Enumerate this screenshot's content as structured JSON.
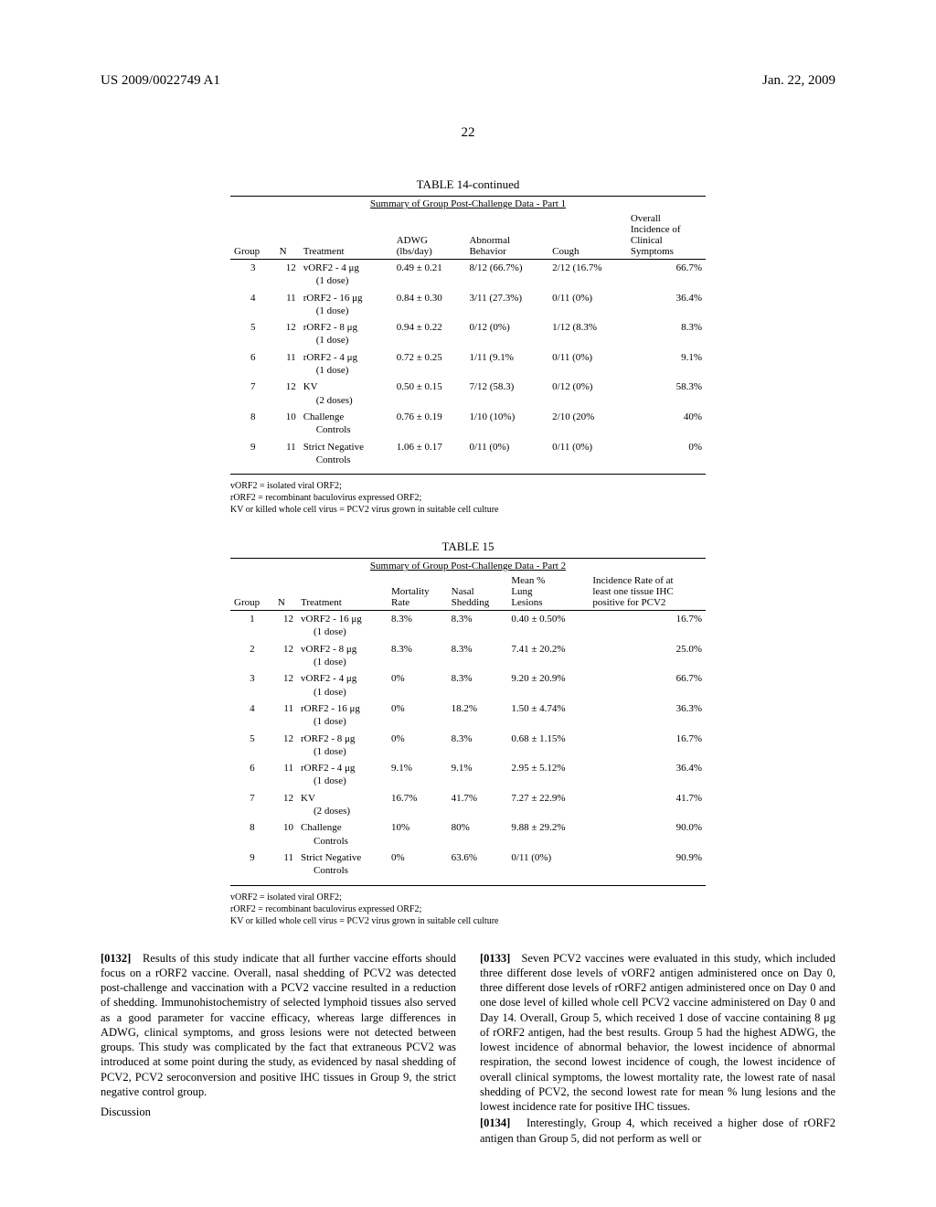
{
  "header": {
    "doc_number": "US 2009/0022749 A1",
    "date": "Jan. 22, 2009",
    "page_number": "22"
  },
  "table14": {
    "title": "TABLE 14-continued",
    "subtitle": "Summary of Group Post-Challenge Data - Part 1",
    "columns": [
      "Group",
      "N",
      "Treatment",
      "ADWG (lbs/day)",
      "Abnormal Behavior",
      "Cough",
      "Overall Incidence of Clinical Symptoms"
    ],
    "rows": [
      {
        "group": "3",
        "n": "12",
        "treat_line1": "vORF2 - 4 μg",
        "treat_line2": "(1 dose)",
        "adwg": "0.49 ± 0.21",
        "ab": "8/12 (66.7%)",
        "cough": "2/12 (16.7%",
        "overall": "66.7%"
      },
      {
        "group": "4",
        "n": "11",
        "treat_line1": "rORF2 - 16 μg",
        "treat_line2": "(1 dose)",
        "adwg": "0.84 ± 0.30",
        "ab": "3/11 (27.3%)",
        "cough": "0/11 (0%)",
        "overall": "36.4%"
      },
      {
        "group": "5",
        "n": "12",
        "treat_line1": "rORF2 - 8 μg",
        "treat_line2": "(1 dose)",
        "adwg": "0.94 ± 0.22",
        "ab": "0/12 (0%)",
        "cough": "1/12 (8.3%",
        "overall": "8.3%"
      },
      {
        "group": "6",
        "n": "11",
        "treat_line1": "rORF2 - 4 μg",
        "treat_line2": "(1 dose)",
        "adwg": "0.72 ± 0.25",
        "ab": "1/11 (9.1%",
        "cough": "0/11 (0%)",
        "overall": "9.1%"
      },
      {
        "group": "7",
        "n": "12",
        "treat_line1": "KV",
        "treat_line2": "(2 doses)",
        "adwg": "0.50 ± 0.15",
        "ab": "7/12 (58.3)",
        "cough": "0/12 (0%)",
        "overall": "58.3%"
      },
      {
        "group": "8",
        "n": "10",
        "treat_line1": "Challenge",
        "treat_line2": "Controls",
        "adwg": "0.76 ± 0.19",
        "ab": "1/10 (10%)",
        "cough": "2/10 (20%",
        "overall": "40%"
      },
      {
        "group": "9",
        "n": "11",
        "treat_line1": "Strict Negative",
        "treat_line2": "Controls",
        "adwg": "1.06 ± 0.17",
        "ab": "0/11 (0%)",
        "cough": "0/11 (0%)",
        "overall": "0%"
      }
    ],
    "footnotes": [
      "vORF2 = isolated viral ORF2;",
      "rORF2 = recombinant baculovirus expressed ORF2;",
      "KV or killed whole cell virus = PCV2 virus grown in suitable cell culture"
    ]
  },
  "table15": {
    "title": "TABLE 15",
    "subtitle": "Summary of Group Post-Challenge Data - Part 2",
    "columns": [
      "Group",
      "N",
      "Treatment",
      "Mortality Rate",
      "Nasal Shedding",
      "Mean % Lung Lesions",
      "Incidence Rate of at least one tissue IHC positive for PCV2"
    ],
    "rows": [
      {
        "group": "1",
        "n": "12",
        "treat_line1": "vORF2 - 16 μg",
        "treat_line2": "(1 dose)",
        "mort": "8.3%",
        "nasal": "8.3%",
        "lung": "0.40 ± 0.50%",
        "ihc": "16.7%"
      },
      {
        "group": "2",
        "n": "12",
        "treat_line1": "vORF2 - 8 μg",
        "treat_line2": "(1 dose)",
        "mort": "8.3%",
        "nasal": "8.3%",
        "lung": "7.41 ± 20.2%",
        "ihc": "25.0%"
      },
      {
        "group": "3",
        "n": "12",
        "treat_line1": "vORF2 - 4 μg",
        "treat_line2": "(1 dose)",
        "mort": "0%",
        "nasal": "8.3%",
        "lung": "9.20 ± 20.9%",
        "ihc": "66.7%"
      },
      {
        "group": "4",
        "n": "11",
        "treat_line1": "rORF2 - 16 μg",
        "treat_line2": "(1 dose)",
        "mort": "0%",
        "nasal": "18.2%",
        "lung": "1.50 ± 4.74%",
        "ihc": "36.3%"
      },
      {
        "group": "5",
        "n": "12",
        "treat_line1": "rORF2 - 8 μg",
        "treat_line2": "(1 dose)",
        "mort": "0%",
        "nasal": "8.3%",
        "lung": "0.68 ± 1.15%",
        "ihc": "16.7%"
      },
      {
        "group": "6",
        "n": "11",
        "treat_line1": "rORF2 - 4 μg",
        "treat_line2": "(1 dose)",
        "mort": "9.1%",
        "nasal": "9.1%",
        "lung": "2.95 ± 5.12%",
        "ihc": "36.4%"
      },
      {
        "group": "7",
        "n": "12",
        "treat_line1": "KV",
        "treat_line2": "(2 doses)",
        "mort": "16.7%",
        "nasal": "41.7%",
        "lung": "7.27 ± 22.9%",
        "ihc": "41.7%"
      },
      {
        "group": "8",
        "n": "10",
        "treat_line1": "Challenge",
        "treat_line2": "Controls",
        "mort": "10%",
        "nasal": "80%",
        "lung": "9.88 ± 29.2%",
        "ihc": "90.0%"
      },
      {
        "group": "9",
        "n": "11",
        "treat_line1": "Strict Negative",
        "treat_line2": "Controls",
        "mort": "0%",
        "nasal": "63.6%",
        "lung": "0/11 (0%)",
        "ihc": "90.9%"
      }
    ],
    "footnotes": [
      "vORF2 = isolated viral ORF2;",
      "rORF2 = recombinant baculovirus expressed ORF2;",
      "KV or killed whole cell virus = PCV2 virus grown in suitable cell culture"
    ]
  },
  "body": {
    "p0132_num": "[0132]",
    "p0132": "Results of this study indicate that all further vaccine efforts should focus on a rORF2 vaccine. Overall, nasal shedding of PCV2 was detected post-challenge and vaccination with a PCV2 vaccine resulted in a reduction of shedding. Immunohistochemistry of selected lymphoid tissues also served as a good parameter for vaccine efficacy, whereas large differences in ADWG, clinical symptoms, and gross lesions were not detected between groups. This study was complicated by the fact that extraneous PCV2 was introduced at some point during the study, as evidenced by nasal shedding of PCV2, PCV2 seroconversion and positive IHC tissues in Group 9, the strict negative control group.",
    "discussion": "Discussion",
    "p0133_num": "[0133]",
    "p0133": "Seven PCV2 vaccines were evaluated in this study, which included three different dose levels of vORF2 antigen administered once on Day 0, three different dose levels of rORF2 antigen administered once on Day 0 and one dose level of killed whole cell PCV2 vaccine administered on Day 0 and Day 14. Overall, Group 5, which received 1 dose of vaccine containing 8 μg of rORF2 antigen, had the best results. Group 5 had the highest ADWG, the lowest incidence of abnormal behavior, the lowest incidence of abnormal respiration, the second lowest incidence of cough, the lowest incidence of overall clinical symptoms, the lowest mortality rate, the lowest rate of nasal shedding of PCV2, the second lowest rate for mean % lung lesions and the lowest incidence rate for positive IHC tissues.",
    "p0134_num": "[0134]",
    "p0134": "Interestingly, Group 4, which received a higher dose of rORF2 antigen than Group 5, did not perform as well or"
  }
}
